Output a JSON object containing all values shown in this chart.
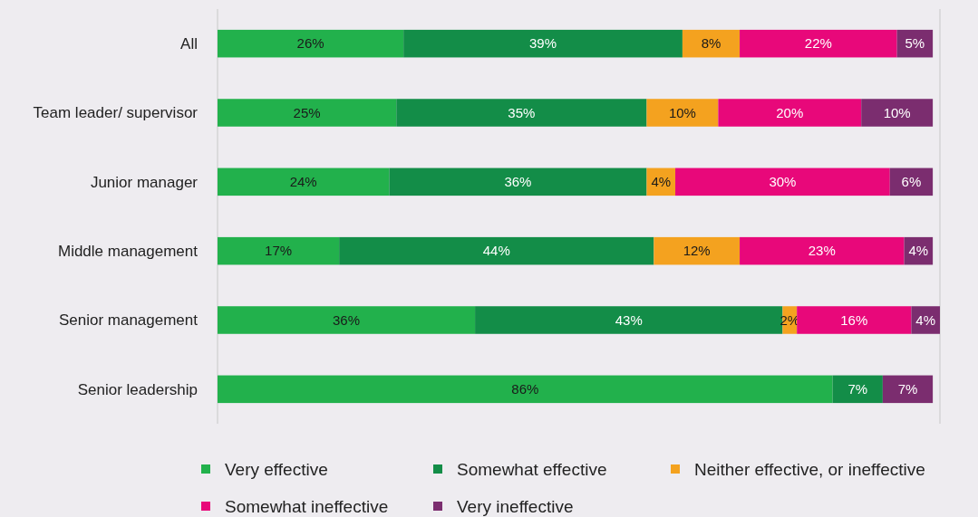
{
  "chart_data": {
    "type": "bar",
    "orientation": "horizontal",
    "stacked": true,
    "xlim": [
      0,
      101
    ],
    "tick_labels": "y",
    "legend": "bottom",
    "categories": [
      "All",
      "Team leader/ supervisor",
      "Junior manager",
      "Middle management",
      "Senior management",
      "Senior leadership"
    ],
    "series": [
      {
        "name": "Very effective",
        "color": "#22b14c",
        "values": [
          26,
          25,
          24,
          17,
          36,
          86
        ],
        "value_labels": [
          "26%",
          "25%",
          "24%",
          "17%",
          "36%",
          "86%"
        ]
      },
      {
        "name": "Somewhat effective",
        "color": "#138d48",
        "values": [
          39,
          35,
          36,
          44,
          43,
          7
        ],
        "value_labels": [
          "39%",
          "35%",
          "36%",
          "44%",
          "43%",
          "7%"
        ]
      },
      {
        "name": "Neither effective, or ineffective",
        "color": "#f4a21f",
        "values": [
          8,
          10,
          4,
          12,
          2,
          null
        ],
        "value_labels": [
          "8%",
          "10%",
          "4%",
          "12%",
          "2%",
          null
        ]
      },
      {
        "name": "Somewhat ineffective",
        "color": "#e8087a",
        "values": [
          22,
          20,
          30,
          23,
          16,
          null
        ],
        "value_labels": [
          "22%",
          "20%",
          "30%",
          "23%",
          "16%",
          null
        ]
      },
      {
        "name": "Very ineffective",
        "color": "#7b2d6f",
        "values": [
          5,
          10,
          6,
          4,
          4,
          7
        ],
        "value_labels": [
          "5%",
          "10%",
          "6%",
          "4%",
          "4%",
          "7%"
        ]
      }
    ]
  }
}
